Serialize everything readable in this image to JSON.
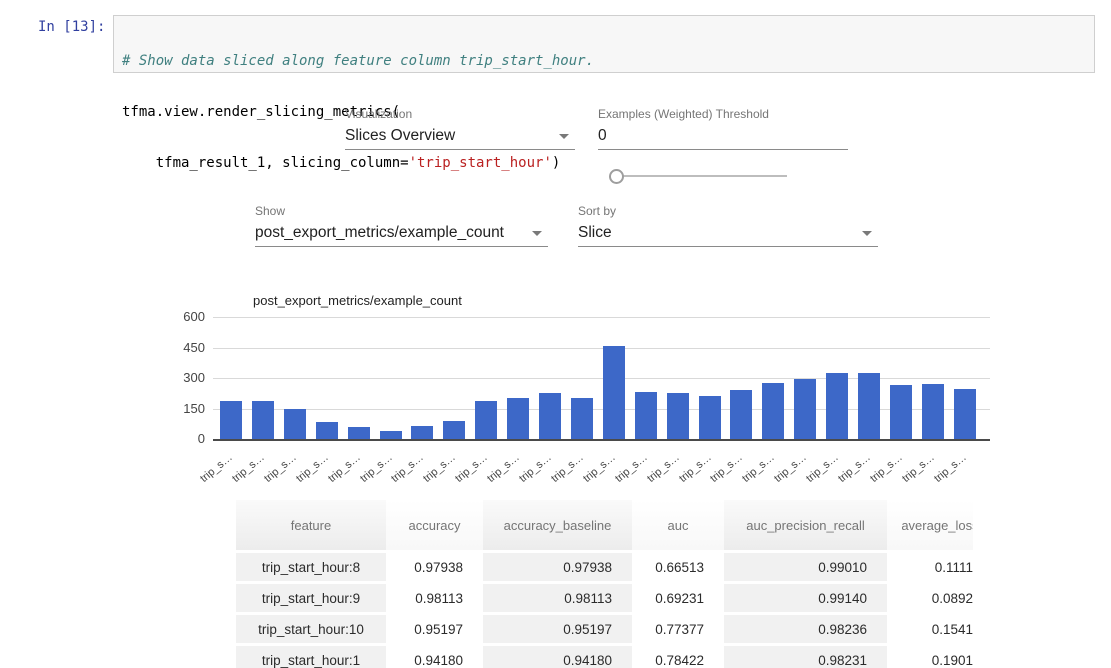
{
  "notebook": {
    "prompt": "In [13]:",
    "code": {
      "comment": "# Show data sliced along feature column trip_start_hour.",
      "line2": "tfma.view.render_slicing_metrics(",
      "line3_pre": "    tfma_result_1, slicing_column=",
      "line3_string": "'trip_start_hour'",
      "line3_close": ")"
    }
  },
  "controls": {
    "visualization": {
      "label": "Visualization",
      "value": "Slices Overview"
    },
    "threshold": {
      "label": "Examples (Weighted) Threshold",
      "value": "0"
    },
    "show": {
      "label": "Show",
      "value": "post_export_metrics/example_count"
    },
    "sort_by": {
      "label": "Sort by",
      "value": "Slice"
    }
  },
  "chart_data": {
    "type": "bar",
    "title": "",
    "legend": "post_export_metrics/example_count",
    "legend_position": "top-left",
    "xlabel": "",
    "ylabel": "",
    "ylim": [
      0,
      600
    ],
    "y_ticks": [
      0,
      150,
      300,
      450,
      600
    ],
    "grid": true,
    "bar_color": "#3d68c8",
    "categories": [
      "trip_s…",
      "trip_s…",
      "trip_s…",
      "trip_s…",
      "trip_s…",
      "trip_s…",
      "trip_s…",
      "trip_s…",
      "trip_s…",
      "trip_s…",
      "trip_s…",
      "trip_s…",
      "trip_s…",
      "trip_s…",
      "trip_s…",
      "trip_s…",
      "trip_s…",
      "trip_s…",
      "trip_s…",
      "trip_s…",
      "trip_s…",
      "trip_s…",
      "trip_s…",
      "trip_s…"
    ],
    "values": [
      185,
      185,
      147,
      85,
      57,
      41,
      64,
      90,
      188,
      203,
      225,
      203,
      460,
      231,
      226,
      214,
      240,
      277,
      297,
      327,
      327,
      265,
      272,
      246
    ]
  },
  "table": {
    "columns": [
      "feature",
      "accuracy",
      "accuracy_baseline",
      "auc",
      "auc_precision_recall",
      "average_loss"
    ],
    "rows": [
      [
        "trip_start_hour:8",
        "0.97938",
        "0.97938",
        "0.66513",
        "0.99010",
        "0.1111"
      ],
      [
        "trip_start_hour:9",
        "0.98113",
        "0.98113",
        "0.69231",
        "0.99140",
        "0.0892"
      ],
      [
        "trip_start_hour:10",
        "0.95197",
        "0.95197",
        "0.77377",
        "0.98236",
        "0.1541"
      ],
      [
        "trip_start_hour:1",
        "0.94180",
        "0.94180",
        "0.78422",
        "0.98231",
        "0.1901"
      ]
    ]
  }
}
